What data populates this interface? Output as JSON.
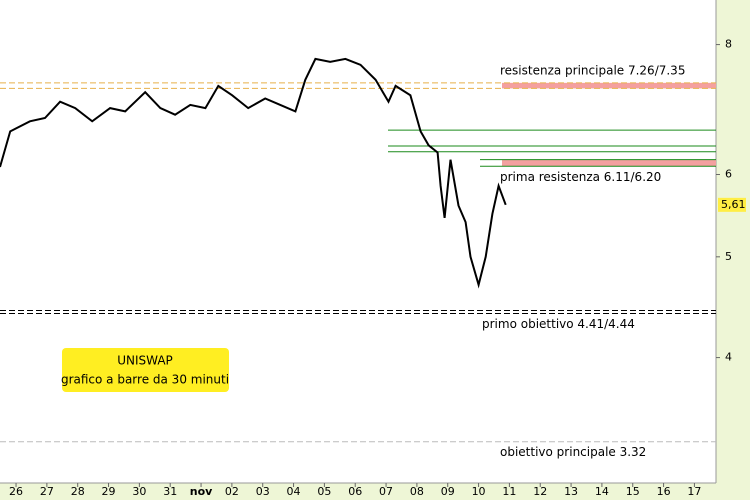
{
  "chart_data": {
    "type": "line",
    "title": "UNISWAP",
    "subtitle": "grafico a barre da 30 minuti",
    "log_scale": true,
    "ylim": [
      3.03,
      8.83
    ],
    "yticks": [
      4,
      5,
      6,
      8
    ],
    "xlim": [
      -0.52,
      22.7
    ],
    "xticks": [
      {
        "value": 0,
        "label": "26"
      },
      {
        "value": 1,
        "label": "27"
      },
      {
        "value": 2,
        "label": "28"
      },
      {
        "value": 3,
        "label": "29"
      },
      {
        "value": 4,
        "label": "30"
      },
      {
        "value": 5,
        "label": "31"
      },
      {
        "value": 6,
        "label": "nov"
      },
      {
        "value": 7,
        "label": "02"
      },
      {
        "value": 8,
        "label": "03"
      },
      {
        "value": 9,
        "label": "04"
      },
      {
        "value": 10,
        "label": "05"
      },
      {
        "value": 11,
        "label": "06"
      },
      {
        "value": 12,
        "label": "07"
      },
      {
        "value": 13,
        "label": "08"
      },
      {
        "value": 14,
        "label": "09"
      },
      {
        "value": 15,
        "label": "10"
      },
      {
        "value": 16,
        "label": "11"
      },
      {
        "value": 17,
        "label": "12"
      },
      {
        "value": 18,
        "label": "13"
      },
      {
        "value": 19,
        "label": "14"
      },
      {
        "value": 20,
        "label": "15"
      },
      {
        "value": 21,
        "label": "16"
      },
      {
        "value": 22,
        "label": "17"
      }
    ],
    "series": [
      {
        "name": "UNISWAP",
        "color": "#000000",
        "x": [
          -0.52,
          -0.19,
          0.45,
          0.94,
          1.43,
          1.92,
          2.47,
          3.05,
          3.54,
          4.19,
          4.68,
          5.16,
          5.65,
          6.14,
          6.56,
          7.01,
          7.53,
          8.08,
          8.57,
          9.06,
          9.38,
          9.71,
          10.19,
          10.68,
          11.17,
          11.66,
          12.08,
          12.31,
          12.79,
          13.12,
          13.38,
          13.67,
          13.77,
          13.9,
          14.09,
          14.35,
          14.58,
          14.74,
          15.0,
          15.23,
          15.45,
          15.65,
          15.88
        ],
        "values": [
          6.1,
          6.6,
          6.75,
          6.8,
          7.05,
          6.95,
          6.75,
          6.95,
          6.9,
          7.2,
          6.95,
          6.85,
          7.0,
          6.95,
          7.3,
          7.15,
          6.95,
          7.1,
          7.0,
          6.9,
          7.4,
          7.75,
          7.7,
          7.75,
          7.65,
          7.4,
          7.05,
          7.3,
          7.15,
          6.6,
          6.4,
          6.3,
          5.85,
          5.45,
          6.2,
          5.6,
          5.4,
          5.0,
          4.7,
          5.0,
          5.5,
          5.85,
          5.61
        ]
      }
    ],
    "last_price": {
      "value": 5.61,
      "label": "5,61",
      "color": "#ffee44"
    },
    "levels": [
      {
        "label": "resistenza principale 7.26/7.35",
        "values": [
          7.26,
          7.35
        ],
        "line_color": "#e8b04a",
        "band_color": "#f4a0a0"
      },
      {
        "label": "prima resistenza 6.11/6.20",
        "values": [
          6.11,
          6.2
        ],
        "line_color": "#1a8a1a",
        "band_color": "#f4a0a0"
      },
      {
        "label": "primo obiettivo 4.41/4.44",
        "values": [
          4.41,
          4.44
        ],
        "line_color": "#000000"
      },
      {
        "label": "obiettivo principale 3.32",
        "values": [
          3.32
        ],
        "line_color": "#bbbbbb"
      }
    ],
    "support_lines": {
      "values": [
        6.62,
        6.39,
        6.31
      ],
      "color": "#1a8a1a"
    },
    "box_color": "#ffee22"
  }
}
